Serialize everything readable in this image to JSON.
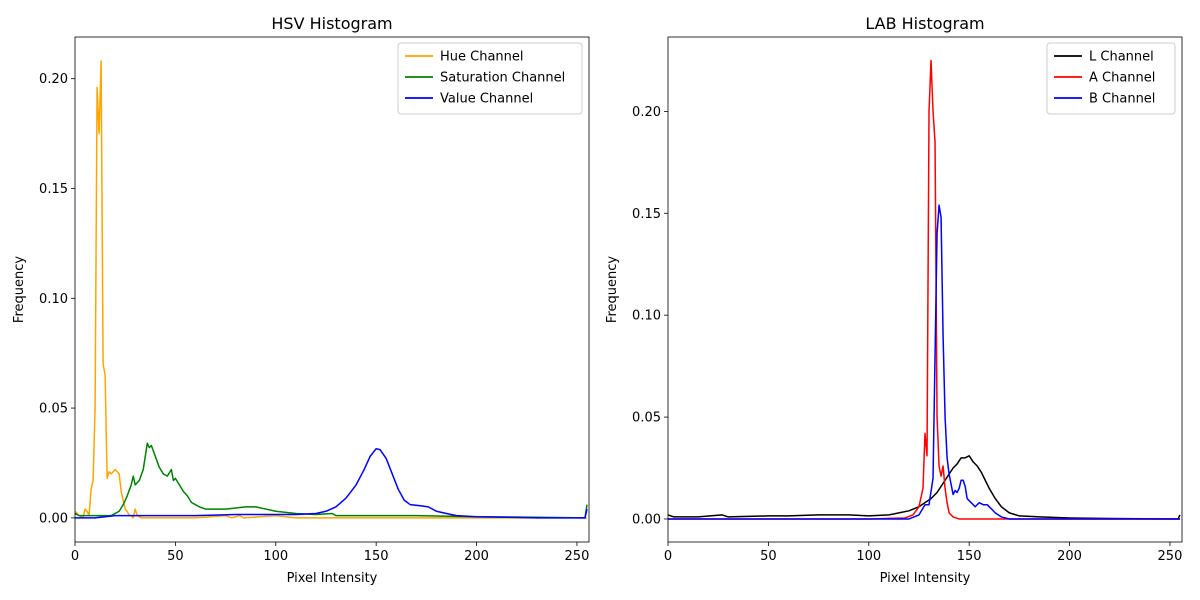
{
  "chart_data": [
    {
      "type": "line",
      "title": "HSV Histogram",
      "xlabel": "Pixel Intensity",
      "ylabel": "Frequency",
      "xlim": [
        0,
        256
      ],
      "ylim": [
        -0.011,
        0.219
      ],
      "xticks": [
        0,
        50,
        100,
        150,
        200,
        250
      ],
      "yticks": [
        0.0,
        0.05,
        0.1,
        0.15,
        0.2
      ],
      "ytick_labels": [
        "0.00",
        "0.05",
        "0.10",
        "0.15",
        "0.20"
      ],
      "grid": false,
      "legend_position": "top-right",
      "series": [
        {
          "name": "Hue Channel",
          "color": "#FFA500",
          "points": [
            [
              0,
              0.003
            ],
            [
              2,
              0.001
            ],
            [
              4,
              0.0
            ],
            [
              5,
              0.004
            ],
            [
              6,
              0.003
            ],
            [
              7,
              0.001
            ],
            [
              8,
              0.013
            ],
            [
              9,
              0.017
            ],
            [
              10,
              0.05
            ],
            [
              11,
              0.196
            ],
            [
              12,
              0.175
            ],
            [
              13,
              0.208
            ],
            [
              14,
              0.07
            ],
            [
              15,
              0.065
            ],
            [
              16,
              0.018
            ],
            [
              17,
              0.021
            ],
            [
              18,
              0.02
            ],
            [
              19,
              0.021
            ],
            [
              20,
              0.022
            ],
            [
              21,
              0.021
            ],
            [
              22,
              0.02
            ],
            [
              23,
              0.012
            ],
            [
              24,
              0.008
            ],
            [
              25,
              0.004
            ],
            [
              26,
              0.003
            ],
            [
              27,
              0.001
            ],
            [
              28,
              0.001
            ],
            [
              29,
              0.0
            ],
            [
              30,
              0.004
            ],
            [
              31,
              0.001
            ],
            [
              33,
              0.0
            ],
            [
              40,
              0.0
            ],
            [
              50,
              0.0
            ],
            [
              60,
              0.0
            ],
            [
              75,
              0.001
            ],
            [
              78,
              0.0
            ],
            [
              82,
              0.001
            ],
            [
              84,
              0.0
            ],
            [
              100,
              0.001
            ],
            [
              110,
              0.0
            ],
            [
              150,
              0.0
            ],
            [
              200,
              0.0
            ],
            [
              255,
              0.0
            ]
          ]
        },
        {
          "name": "Saturation Channel",
          "color": "#008000",
          "points": [
            [
              0,
              0.002
            ],
            [
              2,
              0.001
            ],
            [
              10,
              0.001
            ],
            [
              18,
              0.001
            ],
            [
              20,
              0.002
            ],
            [
              22,
              0.003
            ],
            [
              24,
              0.006
            ],
            [
              26,
              0.01
            ],
            [
              28,
              0.015
            ],
            [
              29,
              0.019
            ],
            [
              30,
              0.015
            ],
            [
              32,
              0.017
            ],
            [
              34,
              0.022
            ],
            [
              36,
              0.034
            ],
            [
              37,
              0.032
            ],
            [
              38,
              0.033
            ],
            [
              40,
              0.028
            ],
            [
              42,
              0.023
            ],
            [
              44,
              0.02
            ],
            [
              46,
              0.019
            ],
            [
              48,
              0.022
            ],
            [
              49,
              0.017
            ],
            [
              50,
              0.018
            ],
            [
              52,
              0.015
            ],
            [
              54,
              0.012
            ],
            [
              56,
              0.01
            ],
            [
              58,
              0.007
            ],
            [
              60,
              0.006
            ],
            [
              62,
              0.005
            ],
            [
              65,
              0.004
            ],
            [
              70,
              0.004
            ],
            [
              75,
              0.004
            ],
            [
              80,
              0.0045
            ],
            [
              85,
              0.005
            ],
            [
              90,
              0.005
            ],
            [
              95,
              0.004
            ],
            [
              100,
              0.003
            ],
            [
              110,
              0.002
            ],
            [
              120,
              0.0015
            ],
            [
              128,
              0.002
            ],
            [
              130,
              0.001
            ],
            [
              150,
              0.001
            ],
            [
              160,
              0.001
            ],
            [
              170,
              0.001
            ],
            [
              200,
              0.0005
            ],
            [
              230,
              0.0003
            ],
            [
              254,
              0.0
            ],
            [
              255,
              0.006
            ]
          ]
        },
        {
          "name": "Value Channel",
          "color": "#0000FF",
          "points": [
            [
              0,
              0.0
            ],
            [
              10,
              0.0
            ],
            [
              20,
              0.001
            ],
            [
              40,
              0.001
            ],
            [
              60,
              0.001
            ],
            [
              80,
              0.0015
            ],
            [
              100,
              0.0015
            ],
            [
              110,
              0.0015
            ],
            [
              120,
              0.002
            ],
            [
              125,
              0.003
            ],
            [
              130,
              0.005
            ],
            [
              135,
              0.009
            ],
            [
              140,
              0.015
            ],
            [
              144,
              0.022
            ],
            [
              147,
              0.028
            ],
            [
              150,
              0.0315
            ],
            [
              152,
              0.031
            ],
            [
              155,
              0.027
            ],
            [
              158,
              0.02
            ],
            [
              161,
              0.013
            ],
            [
              164,
              0.008
            ],
            [
              167,
              0.006
            ],
            [
              172,
              0.0055
            ],
            [
              176,
              0.005
            ],
            [
              180,
              0.003
            ],
            [
              185,
              0.002
            ],
            [
              190,
              0.001
            ],
            [
              200,
              0.0005
            ],
            [
              215,
              0.0003
            ],
            [
              230,
              0.0
            ],
            [
              254,
              0.0
            ],
            [
              255,
              0.004
            ]
          ]
        }
      ]
    },
    {
      "type": "line",
      "title": "LAB Histogram",
      "xlabel": "Pixel Intensity",
      "ylabel": "Frequency",
      "xlim": [
        0,
        256
      ],
      "ylim": [
        -0.0113,
        0.2365
      ],
      "xticks": [
        0,
        50,
        100,
        150,
        200,
        250
      ],
      "yticks": [
        0.0,
        0.05,
        0.1,
        0.15,
        0.2
      ],
      "ytick_labels": [
        "0.00",
        "0.05",
        "0.10",
        "0.15",
        "0.20"
      ],
      "grid": false,
      "legend_position": "top-right",
      "series": [
        {
          "name": "L Channel",
          "color": "#000000",
          "points": [
            [
              0,
              0.002
            ],
            [
              3,
              0.001
            ],
            [
              8,
              0.001
            ],
            [
              15,
              0.001
            ],
            [
              27,
              0.002
            ],
            [
              30,
              0.001
            ],
            [
              50,
              0.0015
            ],
            [
              60,
              0.0015
            ],
            [
              75,
              0.002
            ],
            [
              90,
              0.002
            ],
            [
              100,
              0.0015
            ],
            [
              110,
              0.002
            ],
            [
              115,
              0.003
            ],
            [
              120,
              0.004
            ],
            [
              125,
              0.006
            ],
            [
              128,
              0.008
            ],
            [
              131,
              0.01
            ],
            [
              134,
              0.013
            ],
            [
              136,
              0.016
            ],
            [
              138,
              0.019
            ],
            [
              140,
              0.022
            ],
            [
              142,
              0.025
            ],
            [
              144,
              0.027
            ],
            [
              146,
              0.03
            ],
            [
              148,
              0.03
            ],
            [
              150,
              0.031
            ],
            [
              152,
              0.028
            ],
            [
              154,
              0.026
            ],
            [
              156,
              0.023
            ],
            [
              158,
              0.019
            ],
            [
              160,
              0.015
            ],
            [
              163,
              0.01
            ],
            [
              166,
              0.006
            ],
            [
              170,
              0.003
            ],
            [
              175,
              0.0015
            ],
            [
              185,
              0.001
            ],
            [
              200,
              0.0005
            ],
            [
              220,
              0.0002
            ],
            [
              254,
              0.0
            ],
            [
              255,
              0.002
            ]
          ]
        },
        {
          "name": "A Channel",
          "color": "#FF0000",
          "points": [
            [
              0,
              0.0
            ],
            [
              100,
              0.0
            ],
            [
              118,
              0.0005
            ],
            [
              122,
              0.002
            ],
            [
              125,
              0.006
            ],
            [
              127,
              0.015
            ],
            [
              128,
              0.042
            ],
            [
              129,
              0.031
            ],
            [
              130,
              0.2
            ],
            [
              131,
              0.225
            ],
            [
              132,
              0.2
            ],
            [
              133,
              0.185
            ],
            [
              134,
              0.05
            ],
            [
              135,
              0.026
            ],
            [
              136,
              0.021
            ],
            [
              137,
              0.026
            ],
            [
              138,
              0.015
            ],
            [
              139,
              0.008
            ],
            [
              140,
              0.003
            ],
            [
              142,
              0.001
            ],
            [
              145,
              0.0
            ],
            [
              200,
              0.0
            ],
            [
              255,
              0.0
            ]
          ]
        },
        {
          "name": "B Channel",
          "color": "#0000FF",
          "points": [
            [
              0,
              0.0
            ],
            [
              120,
              0.0
            ],
            [
              125,
              0.002
            ],
            [
              128,
              0.007
            ],
            [
              130,
              0.007
            ],
            [
              132,
              0.02
            ],
            [
              133,
              0.08
            ],
            [
              134,
              0.14
            ],
            [
              135,
              0.154
            ],
            [
              136,
              0.148
            ],
            [
              137,
              0.09
            ],
            [
              138,
              0.05
            ],
            [
              139,
              0.03
            ],
            [
              140,
              0.022
            ],
            [
              141,
              0.017
            ],
            [
              142,
              0.012
            ],
            [
              143,
              0.014
            ],
            [
              144,
              0.013
            ],
            [
              145,
              0.015
            ],
            [
              146,
              0.019
            ],
            [
              147,
              0.019
            ],
            [
              148,
              0.016
            ],
            [
              149,
              0.01
            ],
            [
              151,
              0.008
            ],
            [
              153,
              0.006
            ],
            [
              155,
              0.008
            ],
            [
              157,
              0.007
            ],
            [
              159,
              0.007
            ],
            [
              161,
              0.005
            ],
            [
              163,
              0.003
            ],
            [
              166,
              0.001
            ],
            [
              170,
              0.0
            ],
            [
              255,
              0.0
            ]
          ]
        }
      ]
    }
  ]
}
